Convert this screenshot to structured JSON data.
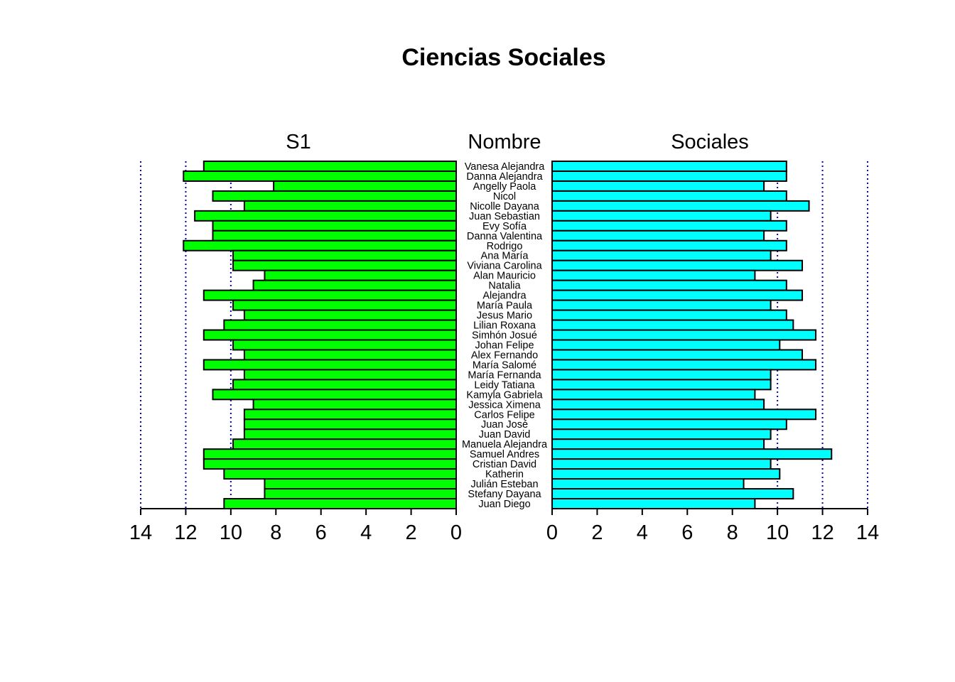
{
  "chart_data": {
    "type": "bar",
    "title": "Ciencias Sociales",
    "panel_labels": {
      "left": "S1",
      "center": "Nombre",
      "right": "Sociales"
    },
    "xlim": [
      0,
      14
    ],
    "x_ticks": [
      0,
      2,
      4,
      6,
      8,
      10,
      12,
      14
    ],
    "gridlines": [
      10,
      12,
      14
    ],
    "grid_style": "dotted",
    "categories": [
      "Vanesa Alejandra",
      "Danna Alejandra",
      "Angelly Paola",
      "Nicol",
      "Nicolle Dayana",
      "Juan Sebastian",
      "Evy Sofía",
      "Danna Valentina",
      "Rodrigo",
      "Ana María",
      "Viviana Carolina",
      "Alan Mauricio",
      "Natalia",
      "Alejandra",
      "María Paula",
      "Jesus Mario",
      "Lilian Roxana",
      "Simhón Josué",
      "Johan Felipe",
      "Alex Fernando",
      "María Salomé",
      "María Fernanda",
      "Leidy Tatiana",
      "Kamyla Gabriela",
      "Jessica Ximena",
      "Carlos Felipe",
      "Juan José",
      "Juan David",
      "Manuela Alejandra",
      "Samuel Andres",
      "Cristian David",
      "Katherin",
      "Julián Esteban",
      "Stefany Dayana",
      "Juan Diego"
    ],
    "series": [
      {
        "name": "S1",
        "color": "#00ff00",
        "values": [
          11.2,
          12.1,
          8.1,
          10.8,
          9.4,
          11.6,
          10.8,
          10.8,
          12.1,
          9.9,
          9.9,
          8.5,
          9.0,
          11.2,
          9.9,
          9.4,
          10.3,
          11.2,
          9.9,
          9.4,
          11.2,
          9.4,
          9.9,
          10.8,
          9.0,
          9.4,
          9.4,
          9.4,
          9.9,
          11.2,
          11.2,
          10.3,
          8.5,
          8.5,
          10.3
        ]
      },
      {
        "name": "Sociales",
        "color": "#00ffff",
        "values": [
          10.4,
          10.4,
          9.4,
          10.4,
          11.4,
          9.7,
          10.4,
          9.4,
          10.4,
          9.7,
          11.1,
          9.0,
          10.4,
          11.1,
          9.7,
          10.4,
          10.7,
          11.7,
          10.1,
          11.1,
          11.7,
          9.7,
          9.7,
          9.0,
          9.4,
          11.7,
          10.4,
          9.7,
          9.4,
          12.4,
          9.7,
          10.1,
          8.5,
          10.7,
          9.0
        ]
      }
    ]
  }
}
